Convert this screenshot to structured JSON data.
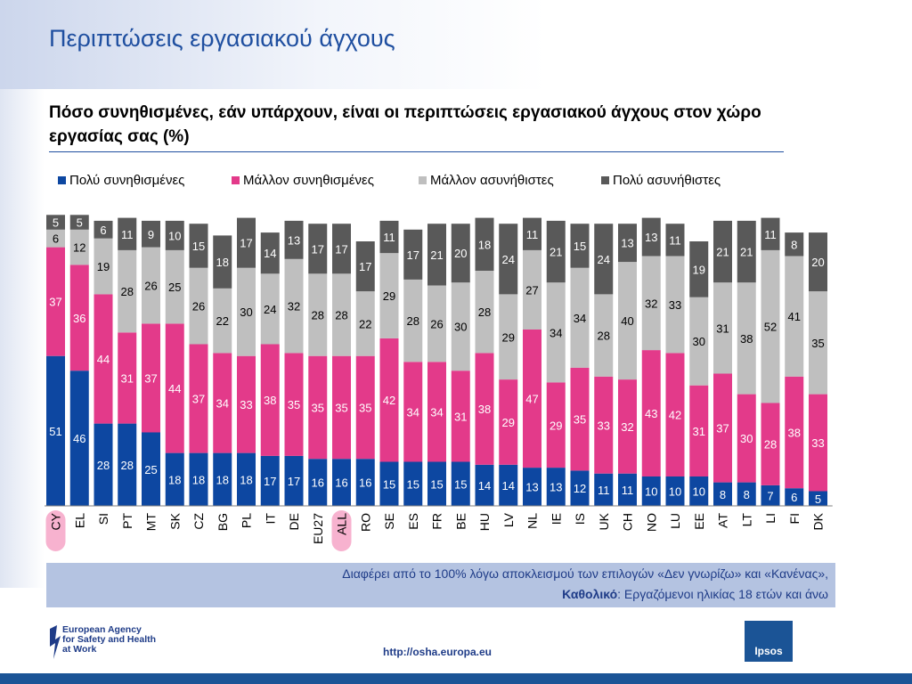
{
  "header": {
    "title": "Περιπτώσεις εργασιακού άγχους"
  },
  "question": "Πόσο συνηθισμένες, εάν υπάρχουν, είναι οι περιπτώσεις εργασιακού άγχους στον χώρο εργασίας σας (%)",
  "footnote": {
    "line1": "Διαφέρει από το 100% λόγω αποκλεισμού των επιλογών «Δεν γνωρίζω» και «Κανένας»,",
    "line2_bold": "Καθολικό",
    "line2_rest": ": Εργαζόμενοι ηλικίας 18 ετών και άνω"
  },
  "footer": {
    "agency_line1": "European Agency",
    "agency_line2": "for Safety and Health",
    "agency_line3": "at Work",
    "url": "http://osha.europa.eu",
    "ipsos": "Ipsos"
  },
  "colors": {
    "very_common": "#0d47a1",
    "fairly_common": "#e33a8a",
    "fairly_rare": "#bfbfbf",
    "very_rare": "#595959",
    "highlight": "#f7b2cf"
  },
  "chart_data": {
    "type": "bar",
    "stacked": true,
    "ylim": [
      0,
      100
    ],
    "grid": false,
    "legend_position": "top",
    "highlighted_categories": [
      "CY",
      "ALL"
    ],
    "categories": [
      "CY",
      "EL",
      "SI",
      "PT",
      "MT",
      "SK",
      "CZ",
      "BG",
      "PL",
      "IT",
      "DE",
      "EU27",
      "ALL",
      "RO",
      "SE",
      "ES",
      "FR",
      "BE",
      "HU",
      "LV",
      "NL",
      "IE",
      "IS",
      "UK",
      "CH",
      "NO",
      "LU",
      "EE",
      "AT",
      "LT",
      "LI",
      "FI",
      "DK"
    ],
    "series": [
      {
        "name": "Πολύ συνηθισμένες",
        "color": "#0d47a1",
        "values": [
          51,
          46,
          28,
          28,
          25,
          18,
          18,
          18,
          18,
          17,
          17,
          16,
          16,
          16,
          15,
          15,
          15,
          15,
          14,
          14,
          13,
          13,
          12,
          11,
          11,
          10,
          10,
          10,
          8,
          8,
          7,
          6,
          5
        ]
      },
      {
        "name": "Μάλλον συνηθισμένες",
        "color": "#e33a8a",
        "values": [
          37,
          36,
          44,
          31,
          37,
          44,
          37,
          34,
          33,
          38,
          35,
          35,
          35,
          35,
          42,
          34,
          34,
          31,
          38,
          29,
          47,
          29,
          35,
          33,
          32,
          43,
          42,
          31,
          37,
          30,
          28,
          38,
          33
        ]
      },
      {
        "name": "Μάλλον ασυνήθιστες",
        "color": "#bfbfbf",
        "values": [
          6,
          12,
          19,
          28,
          26,
          25,
          26,
          22,
          30,
          24,
          32,
          28,
          28,
          22,
          29,
          28,
          26,
          30,
          28,
          29,
          27,
          34,
          34,
          28,
          40,
          32,
          33,
          30,
          31,
          38,
          52,
          41,
          35
        ]
      },
      {
        "name": "Πολύ ασυνήθιστες",
        "color": "#595959",
        "values": [
          5,
          5,
          6,
          11,
          9,
          10,
          15,
          18,
          17,
          14,
          13,
          17,
          17,
          17,
          11,
          17,
          21,
          20,
          18,
          24,
          11,
          21,
          15,
          24,
          13,
          13,
          11,
          19,
          21,
          21,
          11,
          8,
          20
        ]
      }
    ]
  }
}
